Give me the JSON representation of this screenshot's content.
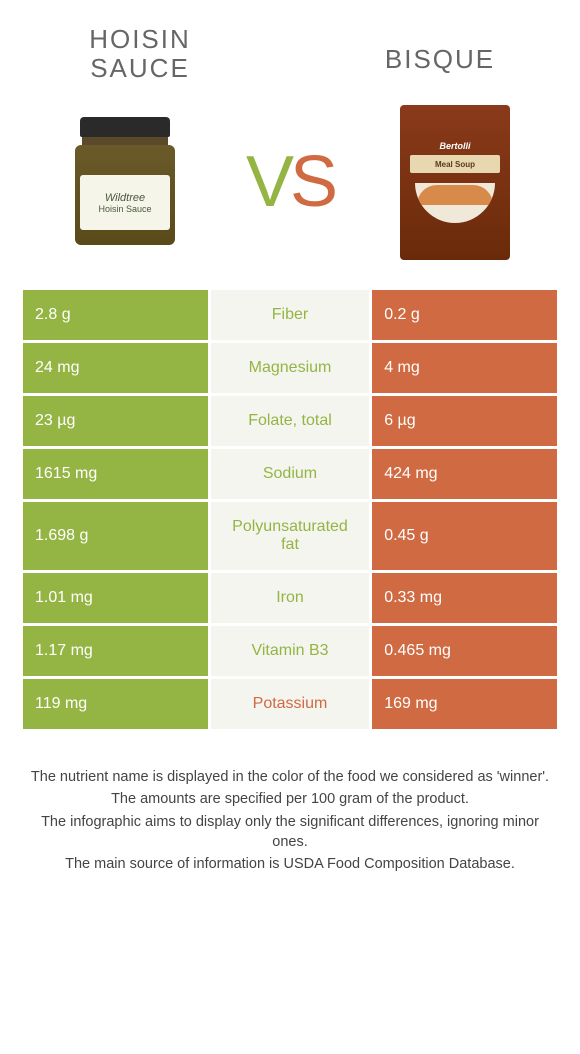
{
  "left": {
    "title": "Hoisin sauce",
    "color": "#94b544",
    "product_label": "Wildtree",
    "product_sub": "Hoisin Sauce"
  },
  "right": {
    "title": "Bisque",
    "color": "#d06a42",
    "product_label": "Bertolli",
    "product_sub": "Meal Soup"
  },
  "vs": {
    "v": "V",
    "s": "S"
  },
  "rows": [
    {
      "left": "2.8 g",
      "label": "Fiber",
      "right": "0.2 g",
      "winner": "left"
    },
    {
      "left": "24 mg",
      "label": "Magnesium",
      "right": "4 mg",
      "winner": "left"
    },
    {
      "left": "23 µg",
      "label": "Folate, total",
      "right": "6 µg",
      "winner": "left"
    },
    {
      "left": "1615 mg",
      "label": "Sodium",
      "right": "424 mg",
      "winner": "left"
    },
    {
      "left": "1.698 g",
      "label": "Polyunsaturated fat",
      "right": "0.45 g",
      "winner": "left"
    },
    {
      "left": "1.01 mg",
      "label": "Iron",
      "right": "0.33 mg",
      "winner": "left"
    },
    {
      "left": "1.17 mg",
      "label": "Vitamin B3",
      "right": "0.465 mg",
      "winner": "left"
    },
    {
      "left": "119 mg",
      "label": "Potassium",
      "right": "169 mg",
      "winner": "right"
    }
  ],
  "midBg": "#f5f5f0",
  "footer": [
    "The nutrient name is displayed in the color of the food we considered as 'winner'.",
    "The amounts are specified per 100 gram of the product.",
    "The infographic aims to display only the significant differences, ignoring minor ones.",
    "The main source of information is USDA Food Composition Database."
  ]
}
